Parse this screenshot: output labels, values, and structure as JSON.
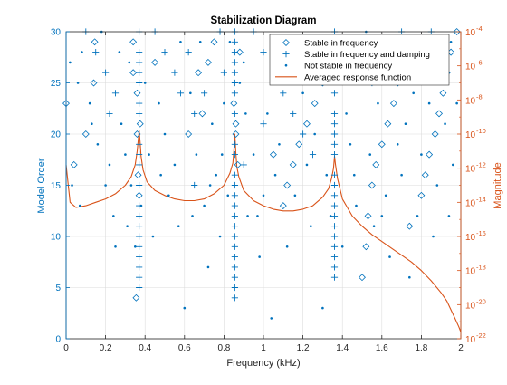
{
  "chart_data": {
    "type": "scatter",
    "title": "Stabilization Diagram",
    "xlabel": "Frequency (kHz)",
    "ylabel_left": "Model Order",
    "ylabel_right": "Magnitude",
    "xlim": [
      0,
      2
    ],
    "ylim_left": [
      0,
      30
    ],
    "ylim_right_log10": [
      -22,
      -4
    ],
    "x_ticks": [
      "0",
      "0.2",
      "0.4",
      "0.6",
      "0.8",
      "1",
      "1.2",
      "1.4",
      "1.6",
      "1.8",
      "2"
    ],
    "y_left_ticks": [
      "0",
      "5",
      "10",
      "15",
      "20",
      "25",
      "30"
    ],
    "y_right_ticks": [
      "10",
      "10",
      "10",
      "10",
      "10",
      "10",
      "10",
      "10",
      "10",
      "10"
    ],
    "y_right_tick_exponents": [
      "-22",
      "-20",
      "-18",
      "-16",
      "-14",
      "-12",
      "-10",
      "-8",
      "-6",
      "-4"
    ],
    "grid": true,
    "legend_position": "top-right",
    "colors": {
      "scatter": "#0072BD",
      "response": "#D95319",
      "axes": "#262626",
      "grid": "#dcdcdc"
    },
    "series": [
      {
        "name": "Stable in frequency",
        "marker": "diamond",
        "points": [
          [
            0.355,
            4
          ],
          [
            0.37,
            14
          ],
          [
            0.365,
            16
          ],
          [
            0.36,
            20
          ],
          [
            0.375,
            21
          ],
          [
            0.36,
            24
          ],
          [
            0.34,
            26
          ],
          [
            0.34,
            29
          ],
          [
            0.04,
            17
          ],
          [
            0.1,
            20
          ],
          [
            0.14,
            25
          ],
          [
            0.145,
            29
          ],
          [
            0.45,
            27
          ],
          [
            0.62,
            20
          ],
          [
            0.67,
            26
          ],
          [
            0.69,
            22
          ],
          [
            0.72,
            27
          ],
          [
            0.75,
            29
          ],
          [
            0.85,
            23
          ],
          [
            0.86,
            21
          ],
          [
            0.86,
            20
          ],
          [
            0.87,
            17
          ],
          [
            0.88,
            28
          ],
          [
            1.05,
            18
          ],
          [
            1.1,
            13
          ],
          [
            1.12,
            15
          ],
          [
            1.15,
            17
          ],
          [
            1.18,
            19
          ],
          [
            1.22,
            21
          ],
          [
            1.26,
            23
          ],
          [
            1.3,
            25
          ],
          [
            1.33,
            27
          ],
          [
            1.36,
            29
          ],
          [
            1.5,
            6
          ],
          [
            1.52,
            9
          ],
          [
            1.53,
            12
          ],
          [
            1.55,
            15
          ],
          [
            1.57,
            17
          ],
          [
            1.6,
            19
          ],
          [
            1.63,
            21
          ],
          [
            1.66,
            23
          ],
          [
            1.68,
            25
          ],
          [
            1.7,
            27
          ],
          [
            1.8,
            14
          ],
          [
            1.82,
            16
          ],
          [
            1.84,
            18
          ],
          [
            1.87,
            20
          ],
          [
            1.89,
            22
          ],
          [
            1.91,
            24
          ],
          [
            1.93,
            26
          ],
          [
            1.95,
            28
          ],
          [
            1.98,
            30
          ],
          [
            0,
            23
          ],
          [
            1.74,
            11
          ]
        ]
      },
      {
        "name": "Stable in frequency and damping",
        "marker": "plus",
        "points": [
          [
            0.37,
            5
          ],
          [
            0.37,
            6
          ],
          [
            0.37,
            7
          ],
          [
            0.37,
            8
          ],
          [
            0.37,
            9
          ],
          [
            0.37,
            10
          ],
          [
            0.37,
            11
          ],
          [
            0.37,
            12
          ],
          [
            0.37,
            13
          ],
          [
            0.37,
            15
          ],
          [
            0.37,
            17
          ],
          [
            0.37,
            18
          ],
          [
            0.37,
            19
          ],
          [
            0.37,
            22
          ],
          [
            0.37,
            23
          ],
          [
            0.37,
            25
          ],
          [
            0.37,
            26
          ],
          [
            0.37,
            27
          ],
          [
            0.37,
            28
          ],
          [
            0.37,
            30
          ],
          [
            0.855,
            4
          ],
          [
            0.855,
            5
          ],
          [
            0.855,
            6
          ],
          [
            0.855,
            7
          ],
          [
            0.855,
            8
          ],
          [
            0.855,
            9
          ],
          [
            0.855,
            10
          ],
          [
            0.855,
            11
          ],
          [
            0.855,
            12
          ],
          [
            0.855,
            13
          ],
          [
            0.855,
            14
          ],
          [
            0.855,
            15
          ],
          [
            0.855,
            16
          ],
          [
            0.855,
            18
          ],
          [
            0.855,
            19
          ],
          [
            0.855,
            22
          ],
          [
            0.855,
            24
          ],
          [
            0.855,
            25
          ],
          [
            0.855,
            26
          ],
          [
            0.855,
            27
          ],
          [
            0.855,
            28
          ],
          [
            0.855,
            29
          ],
          [
            0.855,
            30
          ],
          [
            1.36,
            6
          ],
          [
            1.36,
            7
          ],
          [
            1.36,
            8
          ],
          [
            1.36,
            9
          ],
          [
            1.36,
            10
          ],
          [
            1.36,
            11
          ],
          [
            1.36,
            12
          ],
          [
            1.36,
            13
          ],
          [
            1.36,
            14
          ],
          [
            1.36,
            15
          ],
          [
            1.36,
            16
          ],
          [
            1.36,
            18
          ],
          [
            1.36,
            19
          ],
          [
            1.36,
            20
          ],
          [
            1.36,
            21
          ],
          [
            1.36,
            22
          ],
          [
            1.36,
            24
          ],
          [
            1.36,
            26
          ],
          [
            1.36,
            27
          ],
          [
            1.36,
            28
          ],
          [
            1.36,
            30
          ],
          [
            0.1,
            30
          ],
          [
            0.15,
            28
          ],
          [
            0.2,
            26
          ],
          [
            0.25,
            24
          ],
          [
            0.22,
            22
          ],
          [
            0.45,
            30
          ],
          [
            0.5,
            28
          ],
          [
            0.55,
            26
          ],
          [
            0.58,
            24
          ],
          [
            0.65,
            22
          ],
          [
            0.7,
            24
          ],
          [
            0.62,
            28
          ],
          [
            0.78,
            30
          ],
          [
            0.8,
            26
          ],
          [
            0.95,
            30
          ],
          [
            1.0,
            28
          ],
          [
            1.05,
            26
          ],
          [
            1.1,
            24
          ],
          [
            1.15,
            22
          ],
          [
            1.2,
            20
          ],
          [
            1.25,
            18
          ],
          [
            1.0,
            21
          ],
          [
            0.65,
            15
          ],
          [
            0.9,
            17
          ],
          [
            1.45,
            29
          ],
          [
            1.5,
            27
          ],
          [
            1.55,
            25
          ],
          [
            1.6,
            28
          ],
          [
            1.7,
            30
          ],
          [
            1.75,
            26
          ],
          [
            1.85,
            30
          ],
          [
            1.9,
            28
          ],
          [
            1.92,
            26
          ],
          [
            1.72,
            28
          ]
        ]
      },
      {
        "name": "Not stable in frequency",
        "marker": "dot",
        "points": [
          [
            0.06,
            25
          ],
          [
            0.08,
            28
          ],
          [
            0.12,
            23
          ],
          [
            0.16,
            19
          ],
          [
            0.2,
            15
          ],
          [
            0.24,
            12
          ],
          [
            0.25,
            9
          ],
          [
            0.28,
            21
          ],
          [
            0.3,
            18
          ],
          [
            0.31,
            11
          ],
          [
            0.32,
            27
          ],
          [
            0.33,
            15
          ],
          [
            0.38,
            13
          ],
          [
            0.42,
            18
          ],
          [
            0.47,
            23
          ],
          [
            0.5,
            20
          ],
          [
            0.52,
            14
          ],
          [
            0.55,
            17
          ],
          [
            0.57,
            11
          ],
          [
            0.6,
            3
          ],
          [
            0.63,
            24
          ],
          [
            0.66,
            18
          ],
          [
            0.7,
            13
          ],
          [
            0.72,
            7
          ],
          [
            0.74,
            21
          ],
          [
            0.76,
            16
          ],
          [
            0.78,
            10
          ],
          [
            0.8,
            23
          ],
          [
            0.82,
            14
          ],
          [
            0.9,
            27
          ],
          [
            0.92,
            12
          ],
          [
            0.95,
            18
          ],
          [
            0.98,
            8
          ],
          [
            1.02,
            22
          ],
          [
            1.04,
            2
          ],
          [
            1.06,
            16
          ],
          [
            1.08,
            19
          ],
          [
            1.12,
            9
          ],
          [
            1.14,
            27
          ],
          [
            1.16,
            14
          ],
          [
            1.2,
            24
          ],
          [
            1.24,
            11
          ],
          [
            1.28,
            28
          ],
          [
            1.3,
            3
          ],
          [
            1.32,
            16
          ],
          [
            1.34,
            12
          ],
          [
            1.4,
            9
          ],
          [
            1.42,
            22
          ],
          [
            1.44,
            19
          ],
          [
            1.47,
            13
          ],
          [
            1.49,
            25
          ],
          [
            1.52,
            30
          ],
          [
            1.54,
            18
          ],
          [
            1.56,
            11
          ],
          [
            1.58,
            23
          ],
          [
            1.62,
            14
          ],
          [
            1.64,
            8
          ],
          [
            1.66,
            28
          ],
          [
            1.7,
            16
          ],
          [
            1.72,
            21
          ],
          [
            1.74,
            6
          ],
          [
            1.76,
            24
          ],
          [
            1.78,
            12
          ],
          [
            1.8,
            18
          ],
          [
            1.83,
            27
          ],
          [
            1.86,
            10
          ],
          [
            1.88,
            15
          ],
          [
            1.9,
            25
          ],
          [
            1.92,
            21
          ],
          [
            1.94,
            12
          ],
          [
            1.96,
            17
          ],
          [
            1.98,
            23
          ],
          [
            0.02,
            27
          ],
          [
            0.03,
            15
          ],
          [
            0.07,
            13
          ],
          [
            0.13,
            21
          ],
          [
            0.18,
            30
          ],
          [
            0.22,
            17
          ],
          [
            0.27,
            28
          ],
          [
            0.35,
            9
          ],
          [
            0.4,
            25
          ],
          [
            0.44,
            10
          ],
          [
            0.48,
            16
          ],
          [
            0.58,
            29
          ],
          [
            0.64,
            12
          ],
          [
            0.68,
            29
          ],
          [
            0.73,
            15
          ],
          [
            0.79,
            18
          ],
          [
            0.83,
            29
          ],
          [
            0.88,
            25
          ],
          [
            0.91,
            22
          ],
          [
            0.97,
            12
          ],
          [
            1.0,
            14
          ],
          [
            1.07,
            29
          ],
          [
            1.18,
            26
          ],
          [
            1.22,
            17
          ],
          [
            1.26,
            20
          ],
          [
            1.38,
            27
          ],
          [
            1.46,
            16
          ],
          [
            1.6,
            12
          ],
          [
            1.68,
            19
          ],
          [
            1.73,
            27
          ],
          [
            1.84,
            23
          ],
          [
            1.95,
            29
          ]
        ]
      },
      {
        "name": "Averaged response function",
        "type": "line",
        "note_peaks_kHz": [
          0.37,
          0.855,
          1.36
        ],
        "x": [
          0,
          0.02,
          0.05,
          0.1,
          0.15,
          0.2,
          0.25,
          0.3,
          0.33,
          0.35,
          0.36,
          0.365,
          0.37,
          0.375,
          0.38,
          0.39,
          0.41,
          0.45,
          0.5,
          0.55,
          0.6,
          0.65,
          0.7,
          0.75,
          0.8,
          0.83,
          0.845,
          0.85,
          0.855,
          0.86,
          0.865,
          0.875,
          0.9,
          0.95,
          1.0,
          1.05,
          1.1,
          1.15,
          1.2,
          1.25,
          1.3,
          1.33,
          1.345,
          1.355,
          1.36,
          1.365,
          1.375,
          1.4,
          1.45,
          1.5,
          1.55,
          1.6,
          1.65,
          1.7,
          1.75,
          1.8,
          1.85,
          1.9,
          1.93,
          1.95,
          1.97,
          1.99,
          2.0
        ],
        "y_log10": [
          -11.8,
          -14.0,
          -14.3,
          -14.2,
          -14.0,
          -13.8,
          -13.5,
          -13.0,
          -12.5,
          -11.8,
          -11.0,
          -10.4,
          -9.8,
          -10.5,
          -11.3,
          -12.1,
          -12.8,
          -13.3,
          -13.6,
          -13.8,
          -13.9,
          -13.9,
          -13.8,
          -13.5,
          -13.0,
          -12.3,
          -11.7,
          -11.0,
          -10.0,
          -11.1,
          -11.9,
          -12.5,
          -13.3,
          -13.9,
          -14.2,
          -14.4,
          -14.5,
          -14.5,
          -14.4,
          -14.2,
          -13.7,
          -13.2,
          -12.6,
          -12.0,
          -11.3,
          -11.8,
          -12.6,
          -13.8,
          -14.8,
          -15.4,
          -15.9,
          -16.3,
          -16.7,
          -17.1,
          -17.5,
          -18.0,
          -18.6,
          -19.3,
          -19.8,
          -20.3,
          -20.8,
          -21.3,
          -21.6
        ]
      }
    ]
  }
}
